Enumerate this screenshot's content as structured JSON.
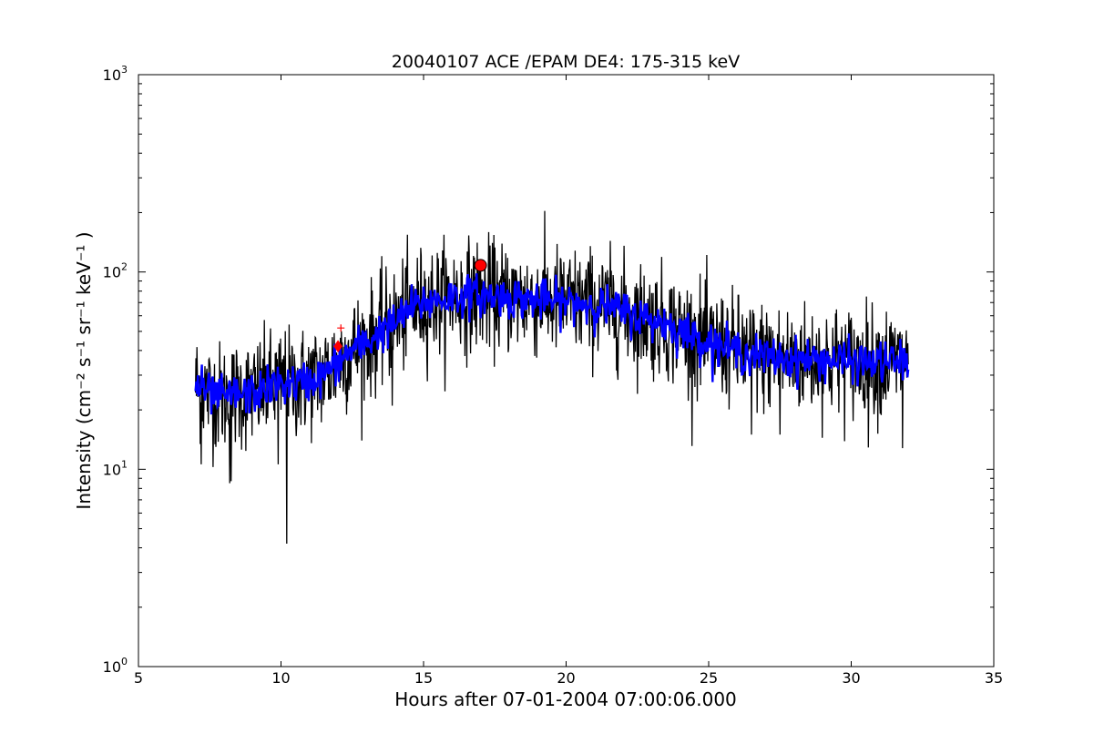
{
  "chart_data": {
    "type": "line",
    "title": "20040107 ACE /EPAM DE4: 175-315 keV",
    "xlabel": "Hours after 07-01-2004 07:00:06.000",
    "ylabel": "Intensity (cm⁻² s⁻¹ sr⁻¹ keV⁻¹ )",
    "xlim": [
      5,
      35
    ],
    "ylim": [
      1,
      1000
    ],
    "yscale": "log",
    "grid": false,
    "x_ticks": [
      5,
      10,
      15,
      20,
      25,
      30,
      35
    ],
    "x_tick_labels": [
      "5",
      "10",
      "15",
      "20",
      "25",
      "30",
      "35"
    ],
    "y_ticks": [
      1,
      10,
      100,
      1000
    ],
    "y_tick_labels": [
      {
        "base": "10",
        "exp": "0"
      },
      {
        "base": "10",
        "exp": "1"
      },
      {
        "base": "10",
        "exp": "2"
      },
      {
        "base": "10",
        "exp": "3"
      }
    ],
    "series": [
      {
        "color": "#000000",
        "style": "raw",
        "x_start": 7.0,
        "x_end": 32.0,
        "noise": 0.32,
        "envelope": [
          [
            7.0,
            27
          ],
          [
            7.5,
            24
          ],
          [
            8.0,
            23
          ],
          [
            8.5,
            24
          ],
          [
            9.0,
            24
          ],
          [
            9.5,
            26
          ],
          [
            10.0,
            27
          ],
          [
            10.5,
            27
          ],
          [
            11.0,
            28
          ],
          [
            11.5,
            30
          ],
          [
            12.0,
            35
          ],
          [
            12.5,
            40
          ],
          [
            13.0,
            44
          ],
          [
            13.5,
            50
          ],
          [
            14.0,
            55
          ],
          [
            14.5,
            65
          ],
          [
            15.0,
            70
          ],
          [
            15.5,
            72
          ],
          [
            16.0,
            75
          ],
          [
            16.5,
            76
          ],
          [
            17.0,
            76
          ],
          [
            17.5,
            75
          ],
          [
            18.0,
            74
          ],
          [
            18.5,
            73
          ],
          [
            19.0,
            72
          ],
          [
            19.5,
            71
          ],
          [
            20.0,
            70
          ],
          [
            20.5,
            70
          ],
          [
            21.0,
            68
          ],
          [
            21.5,
            66
          ],
          [
            22.0,
            63
          ],
          [
            22.5,
            60
          ],
          [
            23.0,
            57
          ],
          [
            23.5,
            55
          ],
          [
            24.0,
            50
          ],
          [
            24.5,
            47
          ],
          [
            25.0,
            44
          ],
          [
            25.5,
            42
          ],
          [
            26.0,
            40
          ],
          [
            26.5,
            38
          ],
          [
            27.0,
            37
          ],
          [
            28.0,
            36
          ],
          [
            29.0,
            36
          ],
          [
            30.0,
            35
          ],
          [
            31.0,
            35
          ],
          [
            32.0,
            35
          ]
        ],
        "spikes": [
          {
            "x": 10.2,
            "y": 4.2
          },
          {
            "x": 8.2,
            "y": 8.5
          },
          {
            "x": 8.25,
            "y": 8.7
          },
          {
            "x": 7.2,
            "y": 10.6
          },
          {
            "x": 9.9,
            "y": 10.6
          },
          {
            "x": 13.9,
            "y": 21
          },
          {
            "x": 26.5,
            "y": 15
          },
          {
            "x": 27.5,
            "y": 15
          },
          {
            "x": 31.8,
            "y": 12.8
          },
          {
            "x": 30.6,
            "y": 12.9
          }
        ]
      },
      {
        "color": "#0000ff",
        "style": "smoothed",
        "x_start": 7.0,
        "x_end": 32.0,
        "noise": 0.12
      }
    ],
    "markers": [
      {
        "x": 12.0,
        "y": 42,
        "shape": "diamond",
        "color": "#ff0000"
      },
      {
        "x": 12.1,
        "y": 52,
        "shape": "plus",
        "color": "#ff0000"
      },
      {
        "x": 17.0,
        "y": 108,
        "shape": "circle",
        "color": "#ff0000"
      }
    ]
  }
}
